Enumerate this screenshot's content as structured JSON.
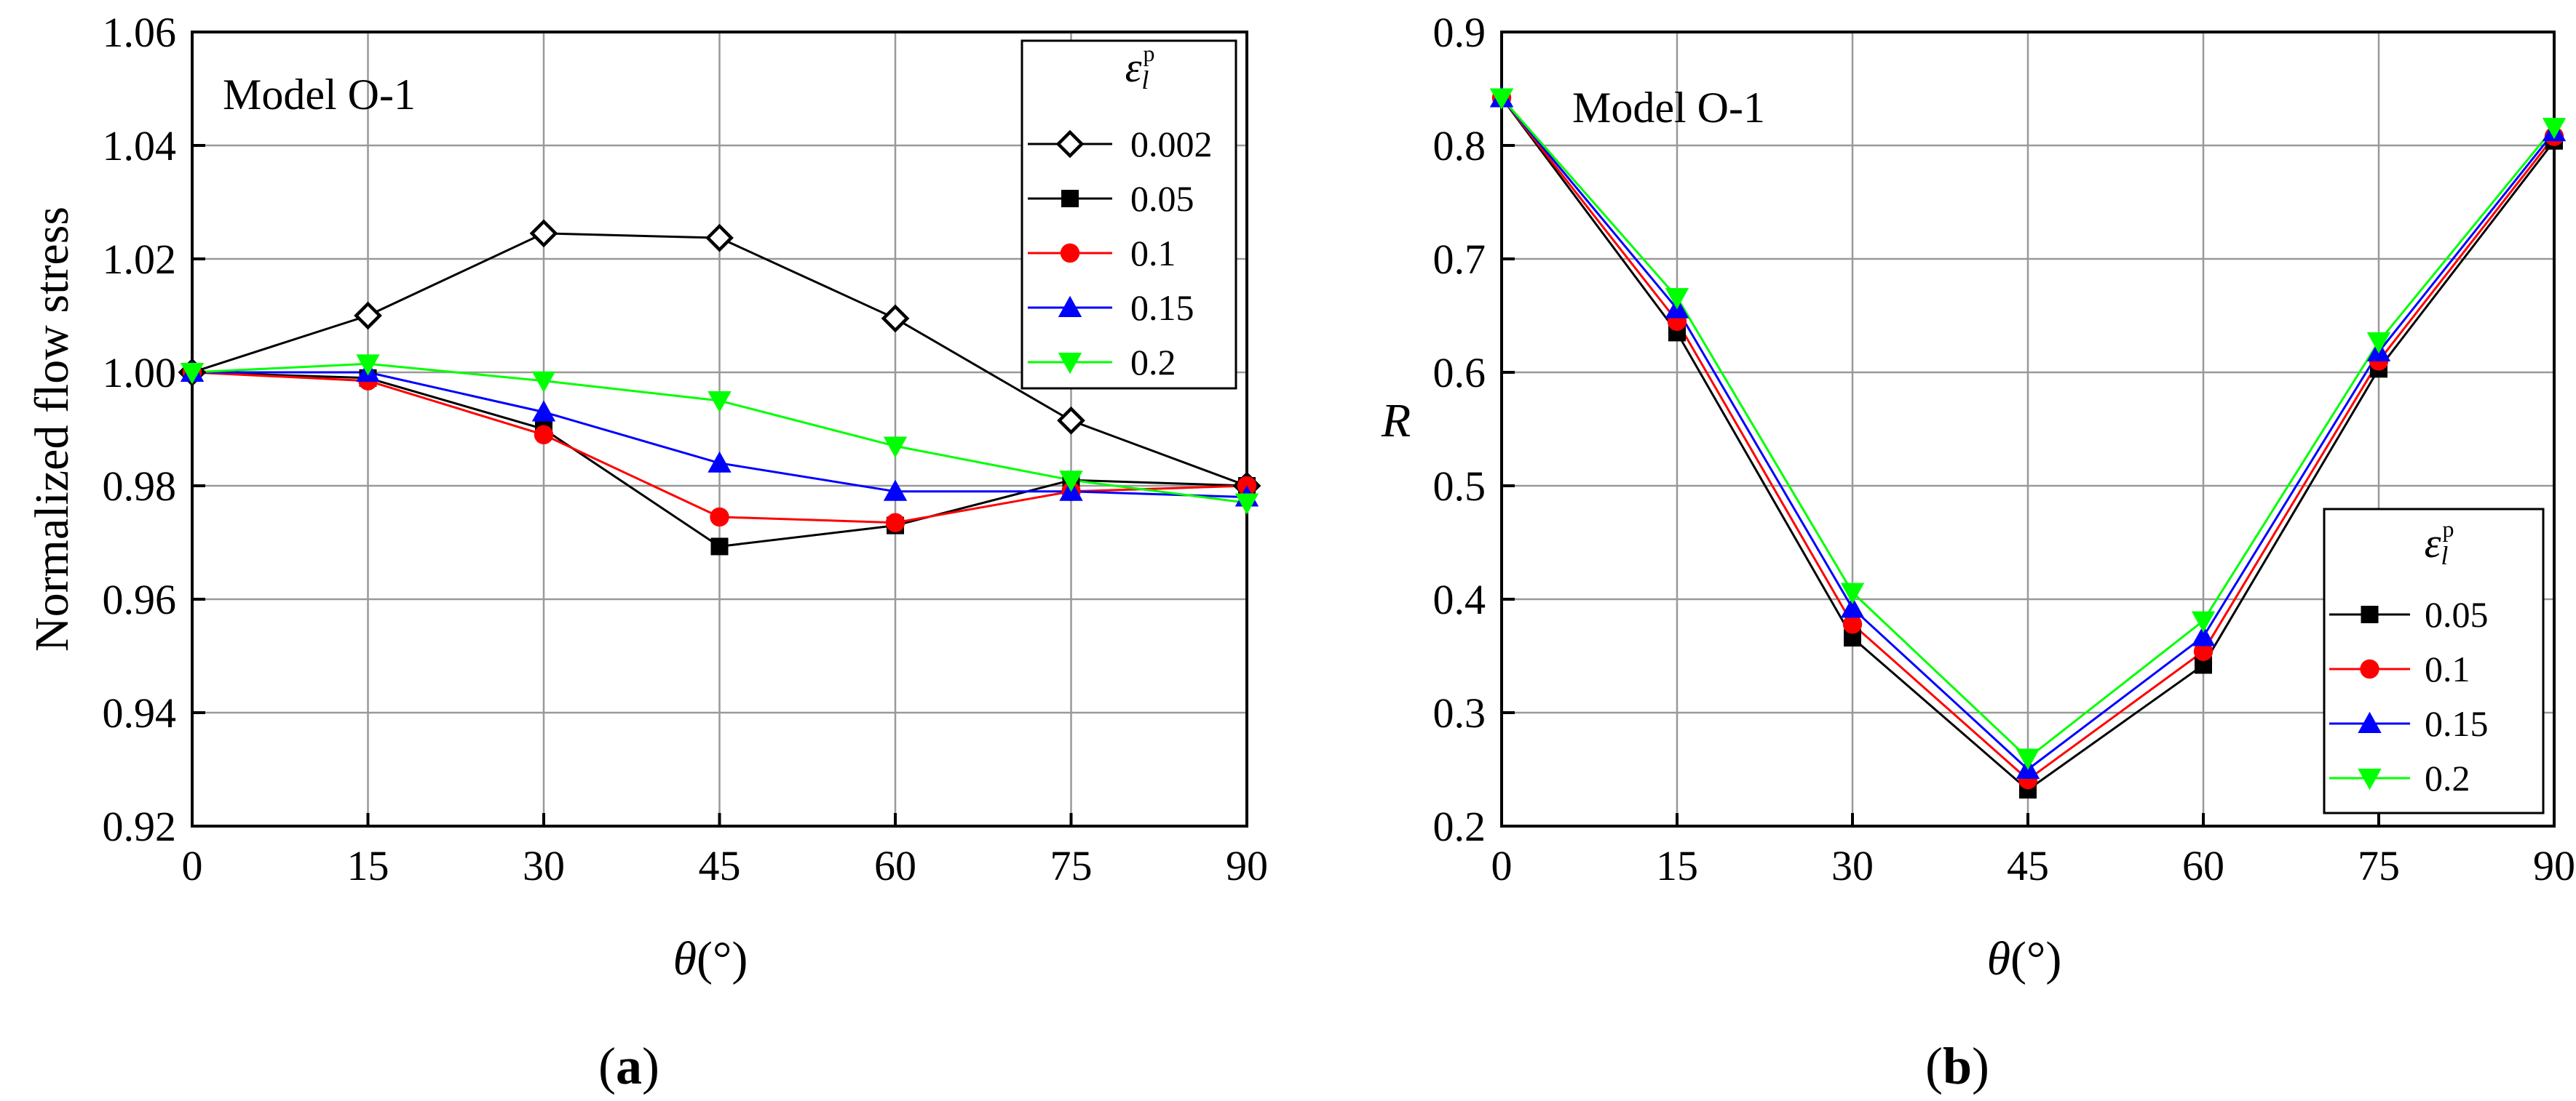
{
  "chart_data": [
    {
      "type": "line",
      "panel_label": "(a)",
      "panel_open": "(",
      "panel_letter": "a",
      "panel_close": ")",
      "annotation": "Model O-1",
      "xlabel_symbol": "θ",
      "xlabel_unit": "(°)",
      "ylabel": "Normalized flow stress",
      "xlim": [
        0,
        90
      ],
      "ylim": [
        0.92,
        1.06
      ],
      "x": [
        0,
        15,
        30,
        45,
        60,
        75,
        90
      ],
      "x_ticks": [
        "0",
        "15",
        "30",
        "45",
        "60",
        "75",
        "90"
      ],
      "y_tick_values": [
        0.92,
        0.94,
        0.96,
        0.98,
        1.0,
        1.02,
        1.04,
        1.06
      ],
      "y_ticks": [
        "0.92",
        "0.94",
        "0.96",
        "0.98",
        "1.00",
        "1.02",
        "1.04",
        "1.06"
      ],
      "grid": true,
      "legend_position": "top-right",
      "legend_title_symbol": "ε",
      "legend_title_sub": "l",
      "legend_title_sup": "p",
      "series": [
        {
          "name": "0.002",
          "color": "#000000",
          "marker": "diamond-open",
          "values": [
            1.0,
            1.01,
            1.0245,
            1.0237,
            1.0095,
            0.9915,
            0.98
          ]
        },
        {
          "name": "0.05",
          "color": "#000000",
          "marker": "square",
          "values": [
            1.0,
            0.999,
            0.99,
            0.9693,
            0.973,
            0.981,
            0.98
          ]
        },
        {
          "name": "0.1",
          "color": "#ff0000",
          "marker": "circle",
          "values": [
            1.0,
            0.9985,
            0.989,
            0.9745,
            0.9735,
            0.979,
            0.98
          ]
        },
        {
          "name": "0.15",
          "color": "#0000ff",
          "marker": "triangle-up",
          "values": [
            1.0,
            1.0,
            0.993,
            0.984,
            0.979,
            0.979,
            0.978
          ]
        },
        {
          "name": "0.2",
          "color": "#00ff00",
          "marker": "triangle-down",
          "values": [
            1.0,
            1.0015,
            0.9985,
            0.995,
            0.987,
            0.981,
            0.977
          ]
        }
      ]
    },
    {
      "type": "line",
      "panel_label": "(b)",
      "panel_open": "(",
      "panel_letter": "b",
      "panel_close": ")",
      "annotation": "Model O-1",
      "xlabel_symbol": "θ",
      "xlabel_unit": "(°)",
      "ylabel": "R",
      "xlim": [
        0,
        90
      ],
      "ylim": [
        0.2,
        0.9
      ],
      "x": [
        0,
        15,
        30,
        45,
        60,
        75,
        90
      ],
      "x_ticks": [
        "0",
        "15",
        "30",
        "45",
        "60",
        "75",
        "90"
      ],
      "y_tick_values": [
        0.2,
        0.3,
        0.4,
        0.5,
        0.6,
        0.7,
        0.8,
        0.9
      ],
      "y_ticks": [
        "0.2",
        "0.3",
        "0.4",
        "0.5",
        "0.6",
        "0.7",
        "0.8",
        "0.9"
      ],
      "grid": true,
      "legend_position": "bottom-right",
      "legend_title_symbol": "ε",
      "legend_title_sub": "l",
      "legend_title_sup": "p",
      "series": [
        {
          "name": "0.05",
          "color": "#000000",
          "marker": "square",
          "values": [
            0.842,
            0.635,
            0.366,
            0.232,
            0.342,
            0.603,
            0.804
          ]
        },
        {
          "name": "0.1",
          "color": "#ff0000",
          "marker": "circle",
          "values": [
            0.842,
            0.645,
            0.378,
            0.241,
            0.354,
            0.61,
            0.808
          ]
        },
        {
          "name": "0.15",
          "color": "#0000ff",
          "marker": "triangle-up",
          "values": [
            0.842,
            0.656,
            0.392,
            0.25,
            0.367,
            0.618,
            0.812
          ]
        },
        {
          "name": "0.2",
          "color": "#00ff00",
          "marker": "triangle-down",
          "values": [
            0.842,
            0.666,
            0.406,
            0.26,
            0.381,
            0.627,
            0.816
          ]
        }
      ]
    }
  ]
}
